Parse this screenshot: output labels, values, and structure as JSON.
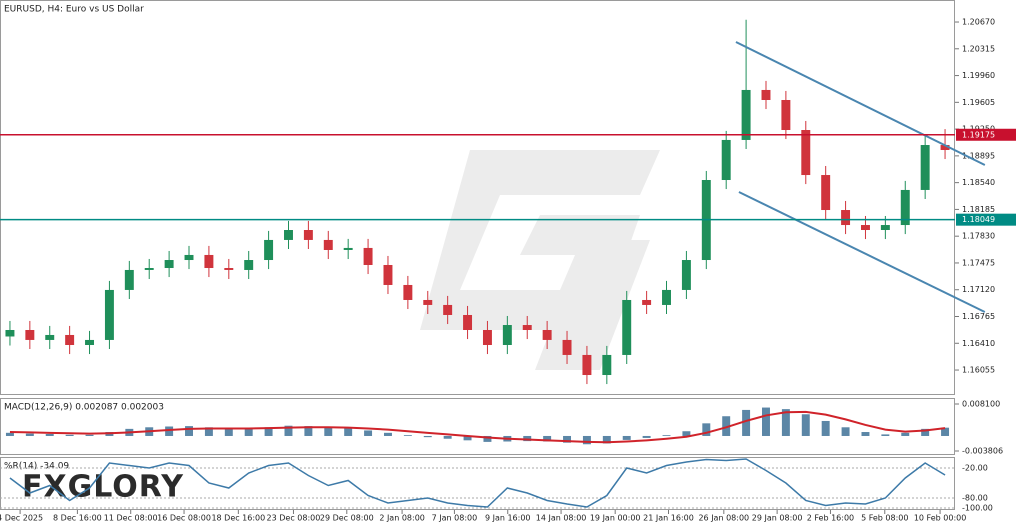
{
  "brand": "FXGLORY",
  "chart_data": [
    {
      "type": "candlestick",
      "title": "EURUSD, H4:  Euro vs US Dollar",
      "xlim": [
        -0.5,
        47.5
      ],
      "ylim": [
        1.15724,
        1.20962
      ],
      "grid": false,
      "yticks": [
        {
          "value": 1.2067,
          "label": "1.20670"
        },
        1.20315,
        {
          "value": 1.1996,
          "label": "1.19960"
        },
        1.19605,
        {
          "value": 1.1925,
          "label": "1.19250"
        },
        1.18895,
        {
          "value": 1.1854,
          "label": "1.18540"
        },
        1.18185,
        {
          "value": 1.1783,
          "label": "1.17830"
        },
        1.17475,
        {
          "value": 1.1712,
          "label": "1.17120"
        },
        1.16765,
        {
          "value": 1.1641,
          "label": "1.16410"
        },
        1.16055
      ],
      "xticks": [
        {
          "value": 0.51,
          "label": "4 Dec 2025"
        },
        {
          "value": 3.39,
          "label": "8 Dec 16:00"
        },
        {
          "value": 6.07,
          "label": "11 Dec 08:00"
        },
        {
          "value": 8.75,
          "label": "16 Dec 08:00"
        },
        {
          "value": 11.48,
          "label": "18 Dec 16:00"
        },
        {
          "value": 14.25,
          "label": "23 Dec 08:00"
        },
        {
          "value": 16.93,
          "label": "29 Dec 08:00"
        },
        {
          "value": 19.71,
          "label": "2 Jan 08:00"
        },
        {
          "value": 22.34,
          "label": "7 Jan 08:00"
        },
        {
          "value": 25.02,
          "label": "9 Jan 16:00"
        },
        {
          "value": 27.7,
          "label": "14 Jan 08:00"
        },
        {
          "value": 30.42,
          "label": "19 Jan 00:00"
        },
        {
          "value": 33.1,
          "label": "21 Jan 16:00"
        },
        {
          "value": 35.88,
          "label": "26 Jan 08:00"
        },
        {
          "value": 38.56,
          "label": "29 Jan 08:00"
        },
        {
          "value": 41.24,
          "label": "2 Feb 16:00"
        },
        {
          "value": 43.97,
          "label": "5 Feb 08:00"
        },
        {
          "value": 46.75,
          "label": "10 Feb 00:00"
        }
      ],
      "open": [
        1.165,
        1.16586,
        1.16454,
        1.1652,
        1.16387,
        1.16454,
        1.17117,
        1.17382,
        1.17408,
        1.17514,
        1.17581,
        1.17408,
        1.17382,
        1.17514,
        1.1778,
        1.17912,
        1.1778,
        1.17647,
        1.17674,
        1.17448,
        1.17183,
        1.16984,
        1.16918,
        1.16785,
        1.16586,
        1.16387,
        1.16652,
        1.16586,
        1.16454,
        1.16255,
        1.15989,
        1.16255,
        1.16984,
        1.16918,
        1.17117,
        1.17514,
        1.18575,
        1.19106,
        1.19769,
        1.19636,
        1.19238,
        1.18641,
        1.18177,
        1.17978,
        1.17912,
        1.17978,
        1.18443,
        1.19039
      ],
      "high": [
        1.16706,
        1.16706,
        1.1664,
        1.1664,
        1.16574,
        1.17237,
        1.17502,
        1.17528,
        1.17634,
        1.17701,
        1.17701,
        1.17528,
        1.17634,
        1.179,
        1.18032,
        1.18032,
        1.179,
        1.17794,
        1.17794,
        1.17568,
        1.17303,
        1.17104,
        1.17038,
        1.16905,
        1.16706,
        1.16772,
        1.16772,
        1.16706,
        1.16574,
        1.16375,
        1.16375,
        1.17104,
        1.17104,
        1.17237,
        1.17634,
        1.18695,
        1.19226,
        1.207,
        1.19889,
        1.19756,
        1.19358,
        1.18761,
        1.18297,
        1.18098,
        1.18098,
        1.18563,
        1.19159,
        1.1925
      ],
      "low": [
        1.1638,
        1.16334,
        1.16334,
        1.16267,
        1.16267,
        1.16334,
        1.16997,
        1.17262,
        1.17288,
        1.17394,
        1.17288,
        1.17262,
        1.17262,
        1.17394,
        1.1766,
        1.1766,
        1.17527,
        1.17527,
        1.17328,
        1.17063,
        1.16864,
        1.16798,
        1.16665,
        1.16466,
        1.16267,
        1.16267,
        1.16466,
        1.16334,
        1.16135,
        1.15869,
        1.15869,
        1.16135,
        1.16798,
        1.16798,
        1.16997,
        1.17394,
        1.18455,
        1.18986,
        1.19516,
        1.19118,
        1.18521,
        1.18057,
        1.17858,
        1.17792,
        1.17792,
        1.17858,
        1.18323,
        1.18853
      ],
      "close": [
        1.16586,
        1.16454,
        1.1652,
        1.16387,
        1.16454,
        1.17117,
        1.17382,
        1.17408,
        1.17514,
        1.17581,
        1.17408,
        1.17382,
        1.17514,
        1.1778,
        1.17912,
        1.1778,
        1.17647,
        1.17674,
        1.17448,
        1.17183,
        1.16984,
        1.16918,
        1.16785,
        1.16586,
        1.16387,
        1.16652,
        1.16586,
        1.16454,
        1.16255,
        1.15989,
        1.16255,
        1.16984,
        1.16918,
        1.17117,
        1.17514,
        1.18575,
        1.19106,
        1.19769,
        1.19636,
        1.19238,
        1.18641,
        1.18177,
        1.17978,
        1.17912,
        1.17978,
        1.18443,
        1.19039,
        1.18973
      ],
      "up_color": "#1f8f5a",
      "down_color": "#d0343c",
      "levels": [
        1.19175,
        1.18049
      ],
      "level_colors": [
        "#c8102e",
        "#008b84"
      ],
      "channel_color": "#4a86b0",
      "channel": [
        {
          "x": [
            36.49,
            49.0
          ],
          "y": [
            1.20405,
            1.18774
          ]
        },
        {
          "x": [
            36.64,
            49.0
          ],
          "y": [
            1.18416,
            1.16825
          ]
        }
      ]
    },
    {
      "type": "macd",
      "label": "MACD(12,26,9) 0.002087 0.002003",
      "ylim": [
        -0.00482,
        0.00962
      ],
      "yticks": [
        {
          "value": 0.0081,
          "label": "0.008100"
        },
        {
          "value": -0.003806,
          "label": "-0.003806"
        }
      ],
      "histogram": [
        0.0008,
        0.0006,
        0.0005,
        0.0003,
        0.0003,
        0.001,
        0.0018,
        0.0022,
        0.0024,
        0.0025,
        0.0022,
        0.0019,
        0.0019,
        0.0022,
        0.0026,
        0.0025,
        0.0021,
        0.0019,
        0.0014,
        0.0008,
        0.0002,
        -0.0003,
        -0.0007,
        -0.0011,
        -0.0015,
        -0.0014,
        -0.0013,
        -0.0014,
        -0.0017,
        -0.0021,
        -0.0019,
        -0.001,
        -0.0005,
        0.0002,
        0.0012,
        0.0032,
        0.005,
        0.0066,
        0.0072,
        0.0068,
        0.0055,
        0.0038,
        0.0022,
        0.001,
        0.0004,
        0.0008,
        0.0018,
        0.0021
      ],
      "signal": [
        0.001,
        0.0009,
        0.0008,
        0.0007,
        0.0006,
        0.0007,
        0.0009,
        0.0012,
        0.0015,
        0.0018,
        0.0019,
        0.0019,
        0.0019,
        0.002,
        0.0021,
        0.0022,
        0.0022,
        0.0021,
        0.0019,
        0.0016,
        0.0012,
        0.0008,
        0.0004,
        0.0,
        -0.0004,
        -0.0007,
        -0.0009,
        -0.0011,
        -0.0013,
        -0.0015,
        -0.0016,
        -0.0014,
        -0.0011,
        -0.0007,
        -0.0002,
        0.0008,
        0.0022,
        0.0038,
        0.0052,
        0.006,
        0.0061,
        0.0054,
        0.0042,
        0.0028,
        0.0016,
        0.0011,
        0.0014,
        0.002
      ],
      "hist_color": "#5b86a6",
      "signal_color": "#d0232a"
    },
    {
      "type": "williams_r",
      "label": "%R(14) -34.09",
      "ylim": [
        -104,
        0
      ],
      "grid": true,
      "yticks": [
        {
          "value": -20,
          "label": "-20.00"
        },
        {
          "value": -80,
          "label": "-80.00"
        },
        {
          "value": -100,
          "label": "-100.00"
        }
      ],
      "values": [
        -40,
        -70,
        -55,
        -85,
        -60,
        -10,
        -15,
        -20,
        -10,
        -15,
        -50,
        -60,
        -30,
        -15,
        -10,
        -35,
        -55,
        -45,
        -75,
        -90,
        -85,
        -80,
        -90,
        -95,
        -98,
        -60,
        -70,
        -85,
        -92,
        -98,
        -75,
        -20,
        -30,
        -15,
        -8,
        -3,
        -5,
        -2,
        -25,
        -50,
        -85,
        -95,
        -90,
        -92,
        -80,
        -40,
        -10,
        -34.09
      ],
      "color": "#3d7aa8"
    }
  ]
}
